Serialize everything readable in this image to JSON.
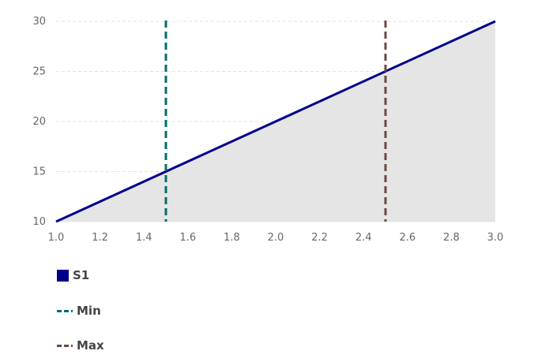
{
  "chart_data": {
    "type": "area",
    "x": [
      1.0,
      3.0
    ],
    "series": [
      {
        "name": "S1",
        "x": [
          1.0,
          3.0
        ],
        "values": [
          10,
          30
        ],
        "color": "#00008b",
        "fill": "#e5e5e5"
      }
    ],
    "reference_lines": [
      {
        "name": "Min",
        "x": 1.5,
        "color": "#006d6d",
        "style": "dashed"
      },
      {
        "name": "Max",
        "x": 2.5,
        "color": "#6b4a3f",
        "style": "dashed"
      }
    ],
    "xlim": [
      1.0,
      3.0
    ],
    "ylim": [
      10,
      30
    ],
    "xticks": [
      "1.0",
      "1.2",
      "1.4",
      "1.6",
      "1.8",
      "2.0",
      "2.2",
      "2.4",
      "2.6",
      "2.8",
      "3.0"
    ],
    "yticks": [
      "10",
      "15",
      "20",
      "25",
      "30"
    ],
    "grid": true,
    "legend_position": "bottom-left"
  },
  "legend": {
    "s1": "S1",
    "min": "Min",
    "max": "Max"
  }
}
